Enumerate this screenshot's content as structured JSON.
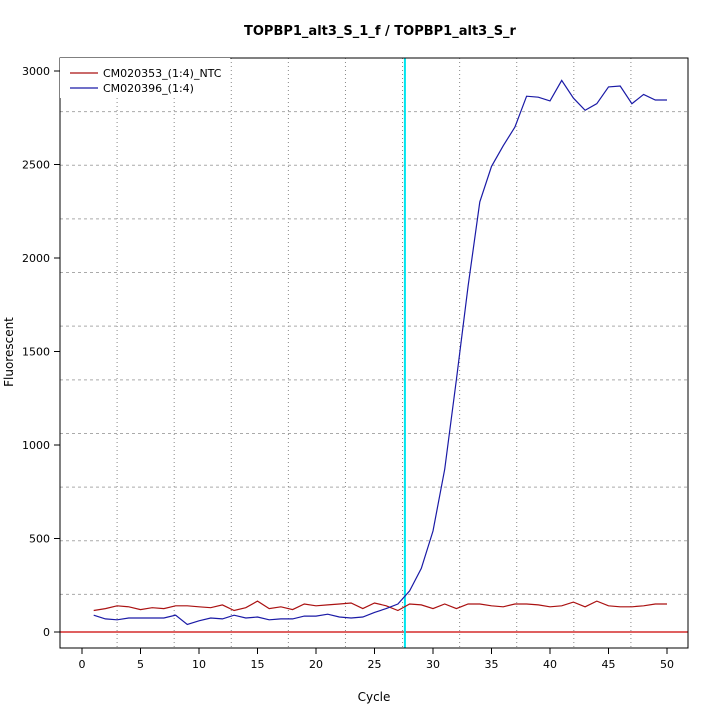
{
  "chart_data": {
    "type": "line",
    "title": "TOPBP1_alt3_S_1_f / TOPBP1_alt3_S_r",
    "xlabel": "Cycle",
    "ylabel": "Fluorescent",
    "xlim": [
      -2,
      52
    ],
    "ylim": [
      -80,
      3060
    ],
    "xticks": [
      0,
      5,
      10,
      15,
      20,
      25,
      30,
      35,
      40,
      45,
      50
    ],
    "yticks": [
      0,
      500,
      1000,
      1500,
      2000,
      2500,
      3000
    ],
    "grid": true,
    "legend_position": "top-left",
    "threshold_cycle": 27.6,
    "threshold_color": "#00e5ee",
    "baseline_value": 0,
    "baseline_color": "#cc0000",
    "series": [
      {
        "name": "CM020353_(1:4)_NTC",
        "color": "#aa1111",
        "x": [
          1,
          2,
          3,
          4,
          5,
          6,
          7,
          8,
          9,
          10,
          11,
          12,
          13,
          14,
          15,
          16,
          17,
          18,
          19,
          20,
          21,
          22,
          23,
          24,
          25,
          26,
          27,
          28,
          29,
          30,
          31,
          32,
          33,
          34,
          35,
          36,
          37,
          38,
          39,
          40,
          41,
          42,
          43,
          44,
          45,
          46,
          47,
          48,
          49,
          50
        ],
        "values": [
          115,
          125,
          140,
          135,
          120,
          130,
          125,
          140,
          140,
          135,
          130,
          145,
          115,
          130,
          165,
          125,
          135,
          120,
          150,
          140,
          145,
          150,
          155,
          125,
          155,
          140,
          115,
          150,
          145,
          125,
          150,
          125,
          150,
          150,
          140,
          135,
          150,
          150,
          145,
          135,
          140,
          160,
          135,
          165,
          140,
          135,
          135,
          140,
          150,
          150
        ]
      },
      {
        "name": "CM020396_(1:4)",
        "color": "#1a1aa6",
        "x": [
          1,
          2,
          3,
          4,
          5,
          6,
          7,
          8,
          9,
          10,
          11,
          12,
          13,
          14,
          15,
          16,
          17,
          18,
          19,
          20,
          21,
          22,
          23,
          24,
          25,
          26,
          27,
          28,
          29,
          30,
          31,
          32,
          33,
          34,
          35,
          36,
          37,
          38,
          39,
          40,
          41,
          42,
          43,
          44,
          45,
          46,
          47,
          48,
          49,
          50
        ],
        "values": [
          90,
          70,
          65,
          75,
          75,
          75,
          75,
          90,
          40,
          60,
          75,
          70,
          90,
          75,
          80,
          65,
          70,
          70,
          85,
          85,
          95,
          80,
          75,
          80,
          105,
          125,
          150,
          220,
          340,
          540,
          870,
          1350,
          1850,
          2300,
          2490,
          2600,
          2700,
          2865,
          2860,
          2840,
          2950,
          2855,
          2790,
          2825,
          2915,
          2920,
          2825,
          2875,
          2845,
          2845
        ]
      }
    ]
  }
}
